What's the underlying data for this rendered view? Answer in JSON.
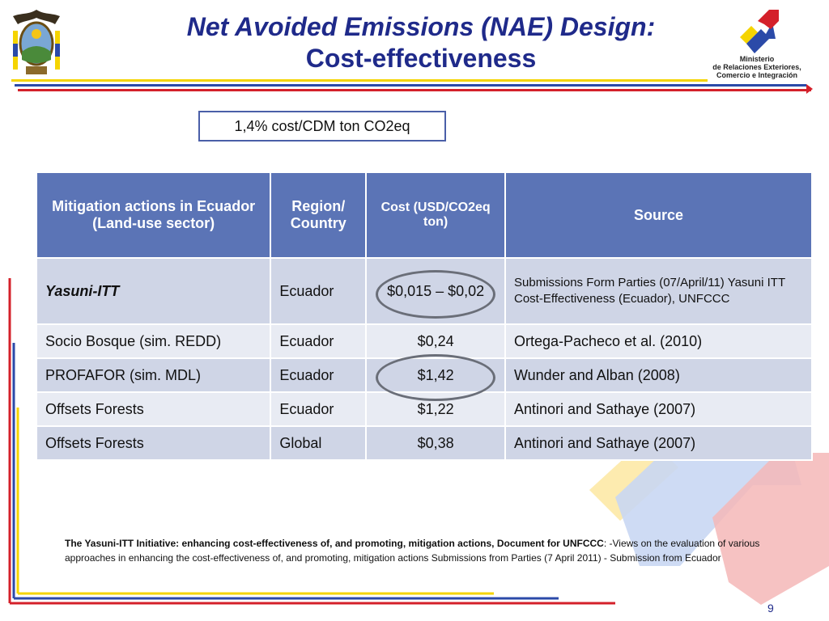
{
  "header": {
    "title_line1": "Net Avoided Emissions (NAE) Design:",
    "title_line2": "Cost-effectiveness",
    "ministry_lines": [
      "Ministerio",
      "de Relaciones Exteriores,",
      "Comercio e Integración"
    ]
  },
  "callout": {
    "text": "1,4% cost/CDM ton CO2eq"
  },
  "table": {
    "headers": [
      "Mitigation actions in Ecuador (Land-use sector)",
      "Region/ Country",
      "Cost (USD/CO2eq ton)",
      "Source"
    ],
    "rows": [
      [
        "Yasuni-ITT",
        "Ecuador",
        "$0,015 – $0,02",
        "Submissions Form Parties (07/April/11) Yasuni ITT Cost-Effectiveness (Ecuador), UNFCCC"
      ],
      [
        "Socio Bosque (sim. REDD)",
        "Ecuador",
        "$0,24",
        "Ortega-Pacheco et al. (2010)"
      ],
      [
        "PROFAFOR (sim. MDL)",
        "Ecuador",
        "$1,42",
        "Wunder and Alban (2008)"
      ],
      [
        "Offsets Forests",
        "Ecuador",
        "$1,22",
        "Antinori and Sathaye (2007)"
      ],
      [
        "Offsets Forests",
        "Global",
        "$0,38",
        "Antinori and Sathaye (2007)"
      ]
    ]
  },
  "footnote": {
    "bold": "The Yasuni-ITT Initiative: enhancing cost-effectiveness of, and promoting, mitigation actions, Document for UNFCCC",
    "rest": ": -Views on the evaluation of various approaches in enhancing the cost-effectiveness of, and promoting, mitigation actions Submissions from Parties (7 April 2011) - Submission from Ecuador"
  },
  "page_number": "9",
  "colors": {
    "title": "#1f2a8a",
    "table_header": "#5b74b6",
    "row_odd": "#cfd5e6",
    "row_even": "#e8ebf3",
    "stripe_yellow": "#f5d400",
    "stripe_blue": "#2b4aa8",
    "stripe_red": "#d4202a"
  }
}
